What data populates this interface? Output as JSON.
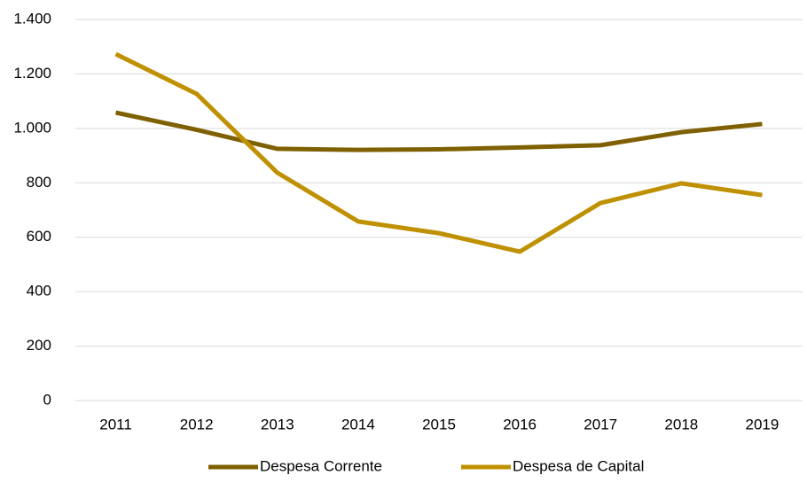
{
  "chart_data": {
    "type": "line",
    "categories": [
      "2011",
      "2012",
      "2013",
      "2014",
      "2015",
      "2016",
      "2017",
      "2018",
      "2019"
    ],
    "series": [
      {
        "name": "Despesa Corrente",
        "color": "#7f6000",
        "values": [
          1058,
          995,
          925,
          921,
          923,
          930,
          938,
          986,
          1016
        ]
      },
      {
        "name": "Despesa de Capital",
        "color": "#bf9000",
        "values": [
          1273,
          1127,
          837,
          658,
          615,
          547,
          726,
          798,
          755
        ]
      }
    ],
    "ylim": [
      0,
      1400
    ],
    "yticks": [
      0,
      200,
      400,
      600,
      800,
      {
        "value": 1000,
        "label": "1.000"
      },
      {
        "value": 1200,
        "label": "1.200"
      },
      {
        "value": 1400,
        "label": "1.400"
      }
    ],
    "grid": true,
    "legend": "bottom"
  }
}
